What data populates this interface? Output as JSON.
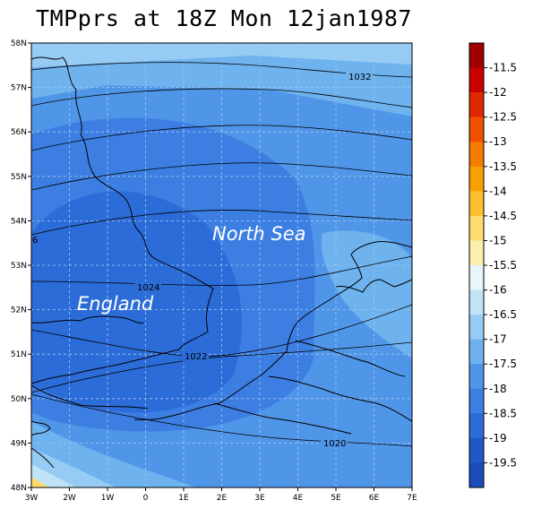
{
  "title": "TMPprs at 18Z Mon 12jan1987",
  "map": {
    "lat_ticks": [
      "58N",
      "57N",
      "56N",
      "55N",
      "54N",
      "53N",
      "52N",
      "51N",
      "50N",
      "49N",
      "48N"
    ],
    "lon_ticks": [
      "3W",
      "2W",
      "1W",
      "0",
      "1E",
      "2E",
      "3E",
      "4E",
      "5E",
      "6E",
      "7E"
    ],
    "region_labels": [
      {
        "text": "North Sea"
      },
      {
        "text": "England"
      }
    ],
    "isobar_labels": [
      "1032",
      "1024",
      "1022",
      "1020",
      "6"
    ]
  },
  "colorbar": {
    "labels": [
      "-11.5",
      "-12",
      "-12.5",
      "-13",
      "-13.5",
      "-14",
      "-14.5",
      "-15",
      "-15.5",
      "-16",
      "-16.5",
      "-17",
      "-17.5",
      "-18",
      "-18.5",
      "-19",
      "-19.5"
    ],
    "colors": [
      "#a00000",
      "#c80000",
      "#e02800",
      "#f05000",
      "#f57a00",
      "#f8a000",
      "#fac030",
      "#fcdc6e",
      "#fcf0b0",
      "#e6f6fa",
      "#c0e4f6",
      "#96ccf4",
      "#6eb2ee",
      "#5096e8",
      "#3c7ee2",
      "#2c6cd8",
      "#2058c8",
      "#1c4cb8"
    ]
  }
}
